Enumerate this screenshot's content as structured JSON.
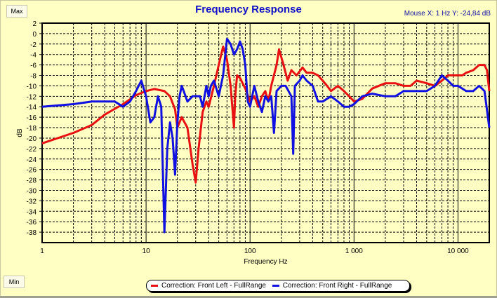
{
  "buttons": {
    "max": "Max",
    "min": "Min"
  },
  "mouse_readout": "Mouse X: 1 Hz   Y: -24,84 dB",
  "chart_data": {
    "type": "line",
    "title": "Frequency Response",
    "xlabel": "Frequency Hz",
    "ylabel": "dB",
    "xscale": "log",
    "xlim": [
      1,
      20000
    ],
    "ylim": [
      -40,
      2
    ],
    "grid": true,
    "legend_position": "bottom-center",
    "x_tick_labels": [
      {
        "v": 1,
        "t": "1"
      },
      {
        "v": 10,
        "t": "10"
      },
      {
        "v": 100,
        "t": "100"
      },
      {
        "v": 1000,
        "t": "1 000"
      },
      {
        "v": 10000,
        "t": "10 000"
      }
    ],
    "y_ticks": [
      2,
      0,
      -2,
      -4,
      -6,
      -8,
      -10,
      -12,
      -14,
      -16,
      -18,
      -20,
      -22,
      -24,
      -26,
      -28,
      -30,
      -32,
      -34,
      -36,
      -38
    ],
    "series": [
      {
        "name": "Correction: Front Left - FullRange",
        "color": "#e81010",
        "x": [
          1,
          2,
          3,
          4,
          6,
          8,
          10,
          12,
          15,
          17,
          19,
          20,
          22,
          25,
          28,
          30,
          32,
          35,
          38,
          40,
          45,
          50,
          55,
          60,
          65,
          70,
          72,
          75,
          80,
          90,
          100,
          110,
          120,
          130,
          140,
          150,
          160,
          180,
          190,
          210,
          230,
          250,
          280,
          320,
          350,
          400,
          450,
          500,
          550,
          600,
          700,
          800,
          900,
          1000,
          1200,
          1500,
          2000,
          2500,
          3000,
          3500,
          4000,
          5000,
          6000,
          7000,
          8000,
          9000,
          10000,
          11000,
          12000,
          14000,
          16000,
          18000,
          19000,
          20000
        ],
        "y": [
          -21,
          -19,
          -17.5,
          -15.5,
          -13.5,
          -11.8,
          -11,
          -10.6,
          -11,
          -12,
          -14.5,
          -18,
          -16,
          -18,
          -25,
          -28.5,
          -22,
          -15,
          -13,
          -14,
          -10,
          -6,
          -2.5,
          -5,
          -10,
          -18,
          -12,
          -8,
          -8.5,
          -10.5,
          -13,
          -12,
          -14,
          -12,
          -11,
          -13,
          -10,
          -6,
          -3,
          -6,
          -9,
          -7,
          -8,
          -6.5,
          -7.5,
          -7.5,
          -8,
          -9,
          -10,
          -11,
          -10,
          -11,
          -12,
          -13,
          -12.5,
          -10.5,
          -9.5,
          -9.5,
          -10,
          -10,
          -9,
          -9.5,
          -10,
          -9,
          -8,
          -8,
          -8,
          -8,
          -7.5,
          -7,
          -6,
          -6,
          -7,
          -11
        ]
      },
      {
        "name": "Correction: Front Right - FullRange",
        "color": "#1010e0",
        "x": [
          1,
          2,
          3,
          4,
          5,
          6,
          7,
          8,
          9,
          10,
          11,
          12,
          13,
          14,
          15,
          16,
          17,
          18,
          19,
          20,
          21,
          22,
          23,
          25,
          28,
          30,
          33,
          35,
          38,
          40,
          42,
          45,
          50,
          55,
          60,
          65,
          70,
          75,
          80,
          85,
          90,
          95,
          100,
          110,
          120,
          130,
          140,
          150,
          160,
          170,
          180,
          200,
          220,
          250,
          260,
          270,
          300,
          320,
          350,
          400,
          450,
          500,
          600,
          700,
          800,
          900,
          1000,
          1200,
          1500,
          2000,
          2500,
          3000,
          4000,
          5000,
          6000,
          7000,
          8000,
          9000,
          10000,
          12000,
          14000,
          16000,
          18000,
          20000
        ],
        "y": [
          -14,
          -13.5,
          -13,
          -13,
          -13,
          -14,
          -13,
          -11,
          -9,
          -12,
          -17,
          -16,
          -12,
          -14,
          -38,
          -22,
          -17,
          -20,
          -27,
          -17,
          -12,
          -10,
          -11,
          -13,
          -12,
          -12,
          -12,
          -14,
          -10,
          -12,
          -10,
          -9,
          -12,
          -8,
          -1,
          -2,
          -4,
          -3,
          -1.5,
          -3,
          -6,
          -13,
          -14,
          -10,
          -13,
          -15,
          -12,
          -13,
          -12,
          -19,
          -11,
          -10,
          -10,
          -12,
          -23,
          -10,
          -9,
          -8,
          -9,
          -10,
          -13,
          -13,
          -12,
          -13,
          -14,
          -14,
          -13.5,
          -12,
          -11.5,
          -12,
          -12,
          -11,
          -11,
          -11,
          -10,
          -8,
          -9,
          -10,
          -10,
          -11,
          -11,
          -10,
          -11,
          -18
        ]
      }
    ]
  }
}
